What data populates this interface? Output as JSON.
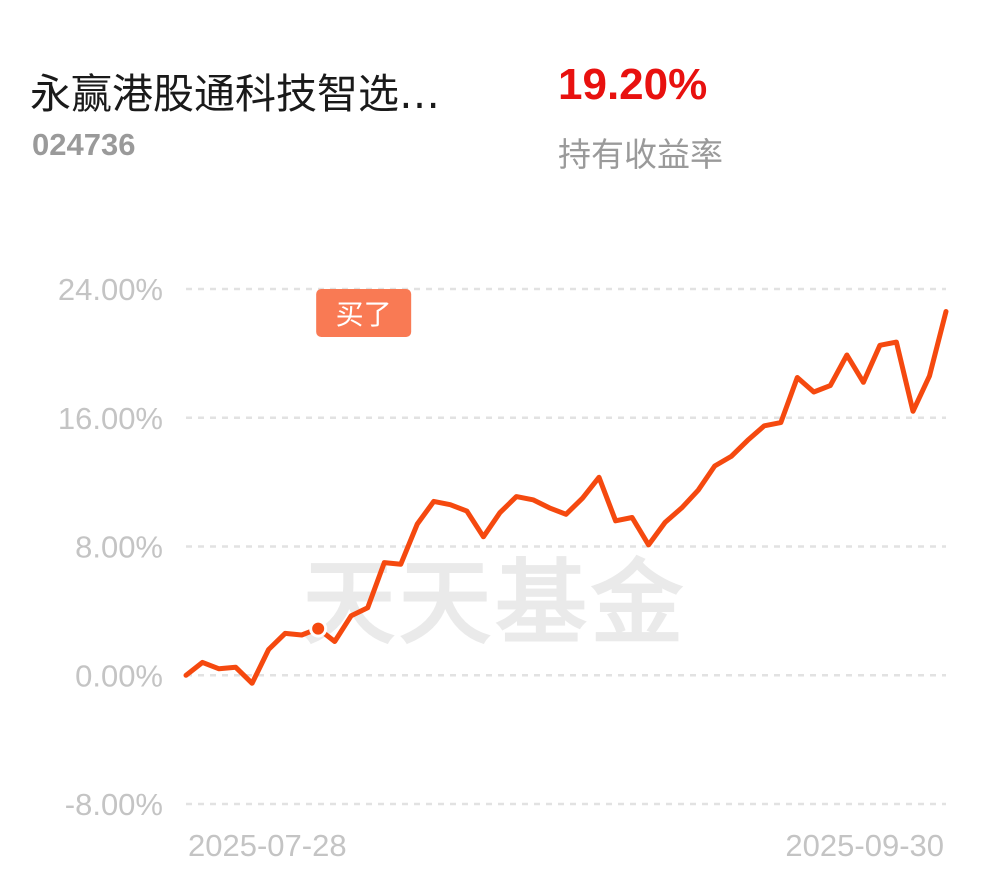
{
  "header": {
    "fund_name": "永赢港股通科技智选…",
    "fund_code": "024736",
    "return_value": "19.20%",
    "return_label": "持有收益率"
  },
  "watermark": "天天基金",
  "colors": {
    "line": "#f5490f",
    "marker": "#f5490f",
    "buy_tag": "#f97a54",
    "grid": "#e2e2e2",
    "tick_text": "#c4c4c4",
    "return_red": "#e8110f"
  },
  "chart_data": {
    "type": "line",
    "title": "",
    "xlabel": "",
    "ylabel": "",
    "ylim": [
      -8,
      24
    ],
    "yticks": [
      24,
      16,
      8,
      0,
      -8
    ],
    "ytick_labels": [
      "24.00%",
      "16.00%",
      "8.00%",
      "0.00%",
      "-8.00%"
    ],
    "xtick_labels": [
      "2025-07-28",
      "2025-09-30"
    ],
    "grid": true,
    "buy_marker": {
      "label": "买了",
      "index": 8
    },
    "series": [
      {
        "values": [
          0.0,
          0.8,
          0.4,
          0.5,
          -0.5,
          1.6,
          2.6,
          2.5,
          2.9,
          2.1,
          3.7,
          4.2,
          7.0,
          6.9,
          9.4,
          10.8,
          10.6,
          10.2,
          8.6,
          10.1,
          11.1,
          10.9,
          10.4,
          10.0,
          11.0,
          12.3,
          9.6,
          9.8,
          8.1,
          9.5,
          10.4,
          11.5,
          13.0,
          13.6,
          14.6,
          15.5,
          15.7,
          18.5,
          17.6,
          18.0,
          19.9,
          18.2,
          20.5,
          20.7,
          16.4,
          18.6,
          22.6
        ]
      }
    ]
  }
}
